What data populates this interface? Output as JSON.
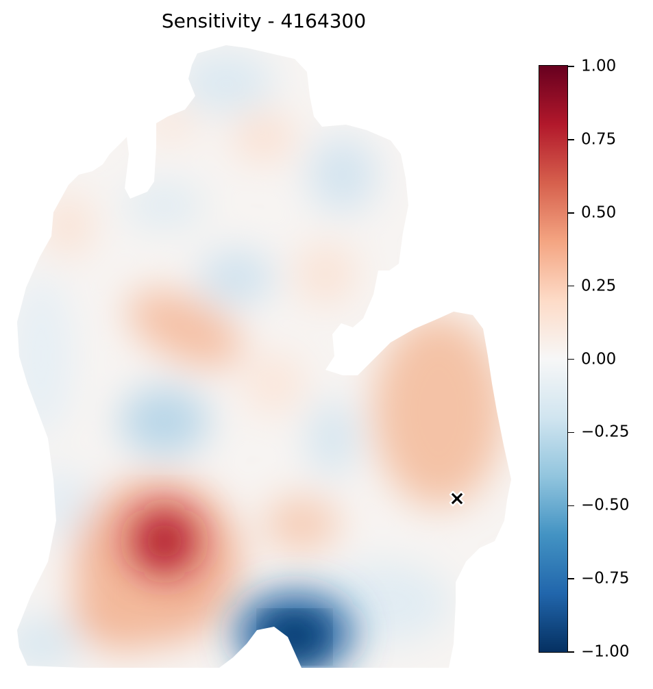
{
  "title": "Sensitivity - 4164300",
  "colorbar": {
    "ticks": [
      "1.00",
      "0.75",
      "0.50",
      "0.25",
      "0.00",
      "−0.25",
      "−0.50",
      "−0.75",
      "−1.00"
    ],
    "tick_values": [
      1.0,
      0.75,
      0.5,
      0.25,
      0.0,
      -0.25,
      -0.5,
      -0.75,
      -1.0
    ],
    "vmin": -1.0,
    "vmax": 1.0,
    "colormap": "RdBu_r",
    "colors": {
      "max": "#67001f",
      "high": "#b2182b",
      "mid_high": "#d6604d",
      "low_high": "#f4a582",
      "light_high": "#fddbc7",
      "zero": "#f7f7f7",
      "light_low": "#d1e5f0",
      "low_low": "#92c5de",
      "mid_low": "#4393c3",
      "low": "#2166ac",
      "min": "#053061"
    }
  },
  "marker": {
    "symbol": "x-marker",
    "color": "#000000"
  }
}
